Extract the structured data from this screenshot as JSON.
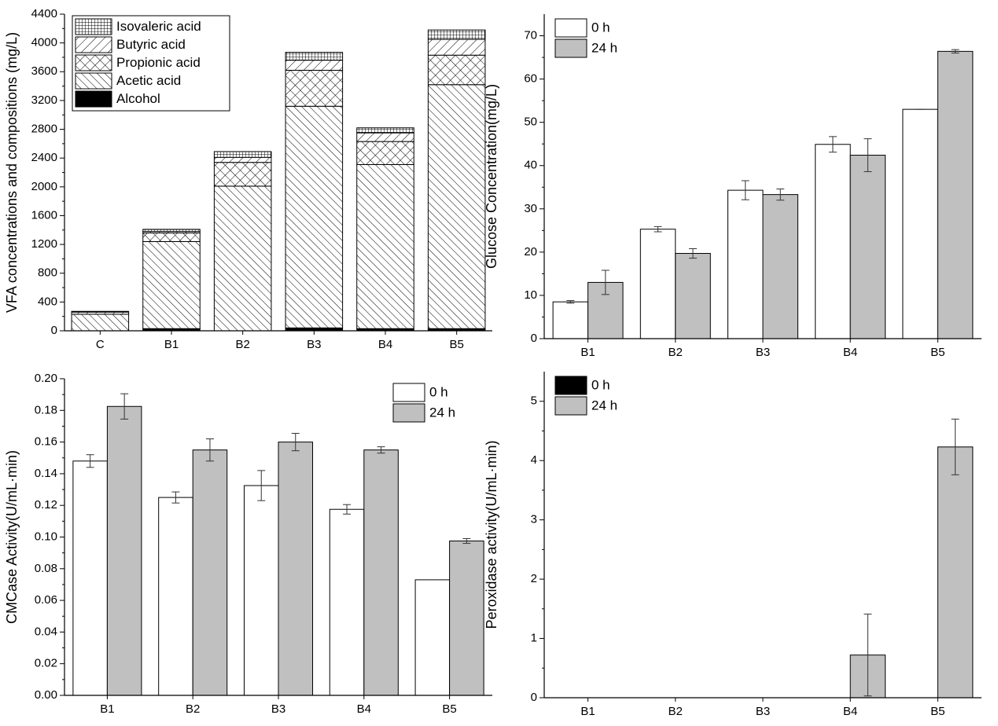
{
  "chart_data": [
    {
      "type": "bar",
      "stacked": true,
      "ylabel": "VFA concentrations and compositions (mg/L)",
      "categories": [
        "C",
        "B1",
        "B2",
        "B3",
        "B4",
        "B5"
      ],
      "series": [
        {
          "name": "Alcohol",
          "color": "#000000",
          "values": [
            0,
            30,
            0,
            40,
            30,
            30
          ]
        },
        {
          "name": "Acetic acid",
          "color": "#ffffff",
          "hatch": "diag-down",
          "values": [
            230,
            1210,
            2010,
            3080,
            2280,
            3390
          ]
        },
        {
          "name": "Propionic acid",
          "color": "#ffffff",
          "hatch": "cross",
          "values": [
            0,
            120,
            330,
            500,
            320,
            410
          ]
        },
        {
          "name": "Butyric acid",
          "color": "#ffffff",
          "hatch": "diag-up",
          "values": [
            30,
            20,
            70,
            140,
            120,
            220
          ]
        },
        {
          "name": "Isovaleric acid",
          "color": "#ffffff",
          "hatch": "grid",
          "values": [
            10,
            30,
            80,
            110,
            70,
            130
          ]
        }
      ],
      "ylim": [
        0,
        4400
      ],
      "yticks": [
        0,
        400,
        800,
        1200,
        1600,
        2000,
        2400,
        2800,
        3200,
        3600,
        4000,
        4400
      ],
      "legend": "top-left",
      "legend_frame": true
    },
    {
      "type": "bar",
      "ylabel": "Glucose Concentration(mg/L)",
      "categories": [
        "B1",
        "B2",
        "B3",
        "B4",
        "B5"
      ],
      "series": [
        {
          "name": "0 h",
          "color": "#ffffff",
          "values": [
            8.5,
            25.3,
            34.3,
            44.9,
            53
          ],
          "errors": [
            0.3,
            0.6,
            2.2,
            1.8,
            0
          ]
        },
        {
          "name": "24 h",
          "color": "#c0c0c0",
          "values": [
            13,
            19.7,
            33.3,
            42.4,
            66.4
          ],
          "errors": [
            2.8,
            1.1,
            1.3,
            3.8,
            0.4
          ]
        }
      ],
      "ylim": [
        0,
        75
      ],
      "yticks": [
        0,
        10,
        20,
        30,
        40,
        50,
        60,
        70
      ],
      "legend": "top-left"
    },
    {
      "type": "bar",
      "ylabel": "CMCase Activity(U/mL·min)",
      "categories": [
        "B1",
        "B2",
        "B3",
        "B4",
        "B5"
      ],
      "series": [
        {
          "name": "0 h",
          "color": "#ffffff",
          "values": [
            0.148,
            0.125,
            0.1325,
            0.1175,
            0.073
          ],
          "errors": [
            0.004,
            0.0035,
            0.0095,
            0.003,
            0
          ]
        },
        {
          "name": "24 h",
          "color": "#c0c0c0",
          "values": [
            0.1825,
            0.155,
            0.16,
            0.155,
            0.0975
          ],
          "errors": [
            0.008,
            0.007,
            0.0055,
            0.002,
            0.0015
          ]
        }
      ],
      "ylim": [
        0,
        0.2
      ],
      "yticks": [
        {
          "value": 0,
          "label": "0.00"
        },
        {
          "value": 0.02,
          "label": "0.02"
        },
        {
          "value": 0.04,
          "label": "0.04"
        },
        {
          "value": 0.06,
          "label": "0.06"
        },
        {
          "value": 0.08,
          "label": "0.08"
        },
        {
          "value": 0.1,
          "label": "0.10"
        },
        {
          "value": 0.12,
          "label": "0.12"
        },
        {
          "value": 0.14,
          "label": "0.14"
        },
        {
          "value": 0.16,
          "label": "0.16"
        },
        {
          "value": 0.18,
          "label": "0.18"
        },
        {
          "value": 0.2,
          "label": "0.20"
        }
      ],
      "legend": "top-right"
    },
    {
      "type": "bar",
      "ylabel": "Peroxidase activity(U/mL·min)",
      "categories": [
        "B1",
        "B2",
        "B3",
        "B4",
        "B5"
      ],
      "series": [
        {
          "name": "0 h",
          "color": "#000000",
          "values": [
            0,
            0,
            0,
            0,
            0
          ],
          "errors": [
            0,
            0,
            0,
            0,
            0
          ]
        },
        {
          "name": "24 h",
          "color": "#c0c0c0",
          "values": [
            0,
            0,
            0,
            0.72,
            4.23
          ],
          "errors": [
            0,
            0,
            0,
            0.69,
            0.47
          ]
        }
      ],
      "ylim": [
        0,
        5.5
      ],
      "yticks": [
        0,
        1,
        2,
        3,
        4,
        5
      ],
      "legend": "top-left"
    }
  ]
}
